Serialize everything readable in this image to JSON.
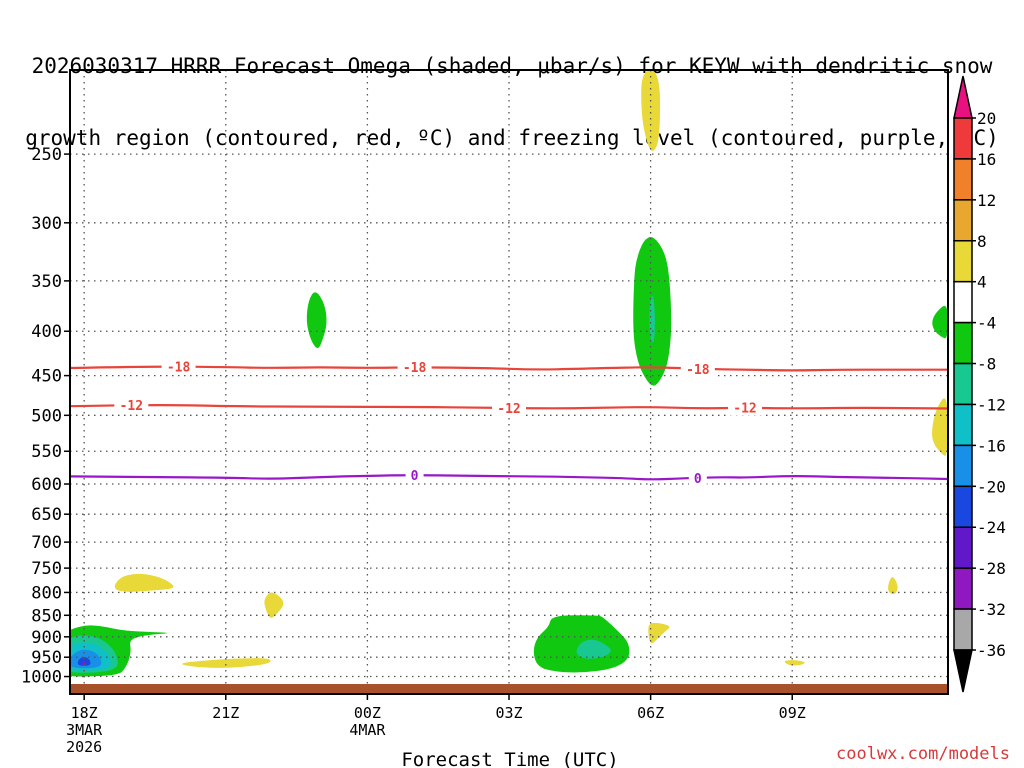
{
  "title_line1": "2026030317 HRRR Forecast Omega (shaded, μbar/s) for KEYW with dendritic snow",
  "title_line2": "growth region (contoured, red, ºC) and freezing level (contoured, purple, ºC)",
  "credit": "coolwx.com/models",
  "chart_data": {
    "type": "contour",
    "xlabel": "Forecast Time (UTC)",
    "x_hours_range": [
      -0.3,
      18.3
    ],
    "y_ticks": [
      250,
      300,
      350,
      400,
      450,
      500,
      550,
      600,
      650,
      700,
      750,
      800,
      850,
      900,
      950,
      1000
    ],
    "y_range_hPa": [
      200,
      1020
    ],
    "x_ticks": [
      {
        "hour": 0,
        "lines": [
          "18Z",
          "3MAR",
          "2026"
        ]
      },
      {
        "hour": 3,
        "lines": [
          "21Z"
        ]
      },
      {
        "hour": 6,
        "lines": [
          "00Z",
          "4MAR"
        ]
      },
      {
        "hour": 9,
        "lines": [
          "03Z"
        ]
      },
      {
        "hour": 12,
        "lines": [
          "06Z"
        ]
      },
      {
        "hour": 15,
        "lines": [
          "09Z"
        ]
      }
    ],
    "grid": true,
    "colorbar": {
      "ticks": [
        "20",
        "16",
        "12",
        "8",
        "4",
        "-4",
        "-8",
        "-12",
        "-16",
        "-20",
        "-24",
        "-28",
        "-32",
        "-36"
      ],
      "colors": [
        "#e8117f",
        "#ee3a3a",
        "#f0802a",
        "#e8a830",
        "#e8d838",
        "#ffffff",
        "#10c810",
        "#18c890",
        "#10c0c8",
        "#1890e8",
        "#1848e0",
        "#6018c8",
        "#9018c0",
        "#a8a8a8",
        "#000000"
      ]
    },
    "contour_lines": [
      {
        "name": "-18",
        "color": "#e8443a",
        "points": [
          [
            -0.3,
            441
          ],
          [
            1.5,
            439
          ],
          [
            3,
            440
          ],
          [
            4,
            441
          ],
          [
            5,
            440
          ],
          [
            6,
            441
          ],
          [
            7,
            440
          ],
          [
            8.5,
            441
          ],
          [
            9.5,
            443
          ],
          [
            10.5,
            442
          ],
          [
            11,
            441
          ],
          [
            12,
            440
          ],
          [
            12.6,
            441
          ],
          [
            13,
            442
          ],
          [
            14,
            443
          ],
          [
            15,
            444
          ],
          [
            16,
            443
          ],
          [
            17,
            443
          ],
          [
            18.3,
            443
          ]
        ],
        "labels_at_hours": [
          2,
          7,
          13
        ]
      },
      {
        "name": "-12",
        "color": "#e8443a",
        "points": [
          [
            -0.3,
            488
          ],
          [
            1.5,
            486
          ],
          [
            3,
            488
          ],
          [
            5,
            489
          ],
          [
            7,
            489
          ],
          [
            8.5,
            490
          ],
          [
            10,
            491
          ],
          [
            11,
            490
          ],
          [
            12,
            489
          ],
          [
            13,
            491
          ],
          [
            14,
            490
          ],
          [
            15,
            491
          ],
          [
            16.5,
            490
          ],
          [
            18.3,
            491
          ]
        ],
        "labels_at_hours": [
          1,
          9,
          14
        ]
      },
      {
        "name": "0",
        "color": "#9818c8",
        "points": [
          [
            -0.3,
            588
          ],
          [
            1.5,
            589
          ],
          [
            3,
            590
          ],
          [
            4,
            592
          ],
          [
            5,
            589
          ],
          [
            6,
            587
          ],
          [
            7,
            586
          ],
          [
            8,
            587
          ],
          [
            9.5,
            588
          ],
          [
            10.5,
            589
          ],
          [
            11.5,
            591
          ],
          [
            12,
            593
          ],
          [
            12.7,
            591
          ],
          [
            13.5,
            589
          ],
          [
            14,
            590
          ],
          [
            15,
            587
          ],
          [
            16,
            589
          ],
          [
            17,
            590
          ],
          [
            18.3,
            592
          ]
        ],
        "labels_at_hours": [
          7,
          13
        ]
      }
    ],
    "shaded_regions": [
      {
        "fill": "#e8d838",
        "points": [
          [
            11.8,
            200
          ],
          [
            12.2,
            200
          ],
          [
            12.2,
            240
          ],
          [
            12.05,
            250
          ],
          [
            11.92,
            243
          ],
          [
            11.8,
            225
          ]
        ]
      },
      {
        "fill": "#10c810",
        "points": [
          [
            4.9,
            358
          ],
          [
            5.1,
            372
          ],
          [
            5.15,
            392
          ],
          [
            5.05,
            410
          ],
          [
            4.95,
            421
          ],
          [
            4.8,
            410
          ],
          [
            4.7,
            390
          ],
          [
            4.75,
            368
          ]
        ]
      },
      {
        "fill": "#10c810",
        "points": [
          [
            11.65,
            346
          ],
          [
            11.7,
            330
          ],
          [
            11.85,
            314
          ],
          [
            12.05,
            310
          ],
          [
            12.3,
            324
          ],
          [
            12.4,
            345
          ],
          [
            12.45,
            395
          ],
          [
            12.38,
            432
          ],
          [
            12.25,
            452
          ],
          [
            12.07,
            465
          ],
          [
            11.9,
            455
          ],
          [
            11.72,
            434
          ],
          [
            11.62,
            400
          ]
        ]
      },
      {
        "fill": "#18c890",
        "points": [
          [
            12.05,
            360
          ],
          [
            12.1,
            385
          ],
          [
            12.08,
            410
          ],
          [
            12.02,
            414
          ],
          [
            11.97,
            396
          ],
          [
            11.98,
            372
          ]
        ]
      },
      {
        "fill": "#10c810",
        "points": [
          [
            18.3,
            370
          ],
          [
            18.05,
            380
          ],
          [
            17.95,
            390
          ],
          [
            18.0,
            399
          ],
          [
            18.15,
            406
          ],
          [
            18.3,
            409
          ]
        ]
      },
      {
        "fill": "#e8d838",
        "points": [
          [
            18.3,
            470
          ],
          [
            18.05,
            490
          ],
          [
            17.95,
            520
          ],
          [
            17.98,
            538
          ],
          [
            18.15,
            553
          ],
          [
            18.3,
            560
          ]
        ]
      },
      {
        "fill": "#e8d838",
        "points": [
          [
            0.6,
            793
          ],
          [
            0.75,
            768
          ],
          [
            1.1,
            760
          ],
          [
            1.5,
            765
          ],
          [
            1.8,
            777
          ],
          [
            1.95,
            792
          ],
          [
            1.4,
            796
          ],
          [
            0.9,
            800
          ]
        ]
      },
      {
        "fill": "#e8d838",
        "points": [
          [
            3.8,
            815
          ],
          [
            3.95,
            797
          ],
          [
            4.15,
            808
          ],
          [
            4.25,
            825
          ],
          [
            4.1,
            845
          ],
          [
            3.95,
            860
          ],
          [
            3.85,
            840
          ]
        ]
      },
      {
        "fill": "#e8d838",
        "points": [
          [
            2.0,
            965
          ],
          [
            2.6,
            958
          ],
          [
            3.2,
            953
          ],
          [
            3.95,
            952
          ],
          [
            3.95,
            966
          ],
          [
            3.4,
            975
          ],
          [
            2.8,
            978
          ],
          [
            2.2,
            973
          ]
        ]
      },
      {
        "fill": "#e8d838",
        "points": [
          [
            11.95,
            870
          ],
          [
            12.1,
            866
          ],
          [
            12.45,
            874
          ],
          [
            12.3,
            888
          ],
          [
            12.15,
            905
          ],
          [
            12.0,
            920
          ],
          [
            11.95,
            895
          ]
        ]
      },
      {
        "fill": "#e8d838",
        "points": [
          [
            14.8,
            960
          ],
          [
            15.0,
            956
          ],
          [
            15.3,
            962
          ],
          [
            15.2,
            970
          ],
          [
            14.95,
            972
          ]
        ]
      },
      {
        "fill": "#e8d838",
        "points": [
          [
            17.0,
            795
          ],
          [
            17.1,
            764
          ],
          [
            17.2,
            775
          ],
          [
            17.25,
            793
          ],
          [
            17.15,
            807
          ]
        ]
      },
      {
        "fill": "#10c810",
        "points": [
          [
            -0.8,
            1000
          ],
          [
            -0.8,
            940
          ],
          [
            -0.6,
            905
          ],
          [
            -0.3,
            882
          ],
          [
            0.05,
            872
          ],
          [
            0.4,
            875
          ],
          [
            0.8,
            885
          ],
          [
            1.3,
            888
          ],
          [
            1.9,
            891
          ],
          [
            1.4,
            894
          ],
          [
            0.95,
            905
          ],
          [
            1.0,
            935
          ],
          [
            0.9,
            975
          ],
          [
            0.7,
            1000
          ]
        ]
      },
      {
        "fill": "#18c890",
        "points": [
          [
            -0.7,
            990
          ],
          [
            -0.65,
            940
          ],
          [
            -0.4,
            905
          ],
          [
            0.0,
            894
          ],
          [
            0.4,
            905
          ],
          [
            0.7,
            940
          ],
          [
            0.72,
            990
          ]
        ]
      },
      {
        "fill": "#10c0c8",
        "points": [
          [
            -0.55,
            985
          ],
          [
            -0.5,
            945
          ],
          [
            -0.3,
            920
          ],
          [
            0.0,
            912
          ],
          [
            0.3,
            920
          ],
          [
            0.55,
            945
          ],
          [
            0.58,
            985
          ]
        ]
      },
      {
        "fill": "#1890e8",
        "points": [
          [
            -0.35,
            978
          ],
          [
            -0.3,
            950
          ],
          [
            -0.15,
            935
          ],
          [
            0.0,
            930
          ],
          [
            0.2,
            935
          ],
          [
            0.35,
            950
          ],
          [
            0.38,
            978
          ]
        ]
      },
      {
        "fill": "#1848e0",
        "points": [
          [
            -0.15,
            972
          ],
          [
            -0.12,
            955
          ],
          [
            0.0,
            948
          ],
          [
            0.12,
            955
          ],
          [
            0.15,
            972
          ]
        ]
      },
      {
        "fill": "#9018c0",
        "points": [
          [
            -0.05,
            966
          ],
          [
            0.0,
            958
          ],
          [
            0.05,
            966
          ],
          [
            0.0,
            972
          ]
        ]
      },
      {
        "fill": "#10c810",
        "points": [
          [
            9.5,
            935
          ],
          [
            9.6,
            900
          ],
          [
            9.85,
            876
          ],
          [
            9.9,
            850
          ],
          [
            10.9,
            850
          ],
          [
            11.0,
            855
          ],
          [
            11.3,
            885
          ],
          [
            11.55,
            915
          ],
          [
            11.55,
            955
          ],
          [
            11.2,
            980
          ],
          [
            10.6,
            990
          ],
          [
            10.0,
            988
          ],
          [
            9.6,
            975
          ]
        ]
      },
      {
        "fill": "#18c890",
        "points": [
          [
            10.4,
            935
          ],
          [
            10.55,
            910
          ],
          [
            10.8,
            905
          ],
          [
            11.05,
            918
          ],
          [
            11.2,
            935
          ],
          [
            11.0,
            950
          ],
          [
            10.7,
            955
          ],
          [
            10.5,
            950
          ]
        ]
      }
    ]
  }
}
